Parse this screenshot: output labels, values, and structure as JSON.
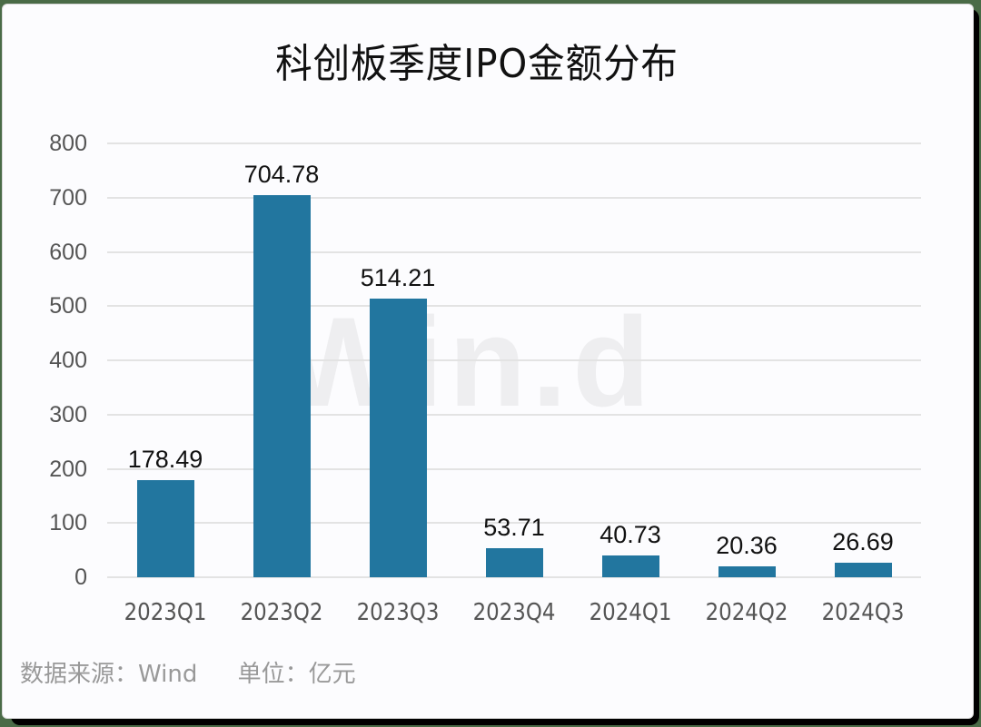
{
  "title": "科创板季度IPO金额分布",
  "watermark": "Win.d",
  "footer": {
    "source": "数据来源：Wind",
    "unit": "单位：亿元"
  },
  "colors": {
    "bar": "#22769f",
    "background": "#4a6b47",
    "card": "#fcfcfe",
    "grid": "#e3e3e3"
  },
  "y_ticks": [
    "800",
    "700",
    "600",
    "500",
    "400",
    "300",
    "200",
    "100",
    "0"
  ],
  "chart_data": {
    "type": "bar",
    "title": "科创板季度IPO金额分布",
    "categories": [
      "2023Q1",
      "2023Q2",
      "2023Q3",
      "2023Q4",
      "2024Q1",
      "2024Q2",
      "2024Q3"
    ],
    "values": [
      178.49,
      704.78,
      514.21,
      53.71,
      40.73,
      20.36,
      26.69
    ],
    "value_labels": [
      "178.49",
      "704.78",
      "514.21",
      "53.71",
      "40.73",
      "20.36",
      "26.69"
    ],
    "xlabel": "",
    "ylabel": "亿元",
    "ylim": [
      0,
      800
    ],
    "yticks": [
      0,
      100,
      200,
      300,
      400,
      500,
      600,
      700,
      800
    ],
    "grid": true,
    "legend": "none",
    "source": "Wind",
    "unit": "亿元"
  }
}
